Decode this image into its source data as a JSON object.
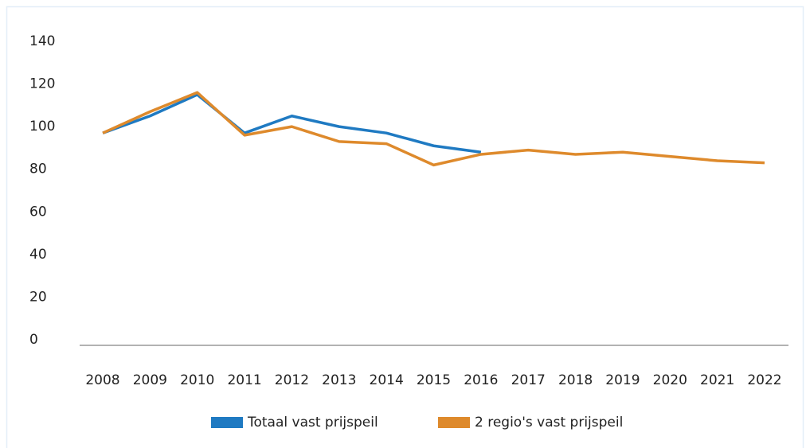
{
  "chart_data": {
    "type": "line",
    "categories": [
      "2008",
      "2009",
      "2010",
      "2011",
      "2012",
      "2013",
      "2014",
      "2015",
      "2016",
      "2017",
      "2018",
      "2019",
      "2020",
      "2021",
      "2022"
    ],
    "series": [
      {
        "name": "Totaal vast prijspeil",
        "color": "#1f7ac2",
        "values": [
          97,
          105,
          115,
          97,
          105,
          100,
          97,
          91,
          88,
          null,
          null,
          null,
          null,
          null,
          null
        ]
      },
      {
        "name": "2 regio's vast prijspeil",
        "color": "#de8a2c",
        "values": [
          97,
          107,
          116,
          96,
          100,
          93,
          92,
          82,
          87,
          89,
          87,
          88,
          86,
          84,
          83
        ]
      }
    ],
    "ylim": [
      0,
      140
    ],
    "yticks": [
      0,
      20,
      40,
      60,
      80,
      100,
      120,
      140
    ],
    "grid": false,
    "legend": "bottom"
  }
}
